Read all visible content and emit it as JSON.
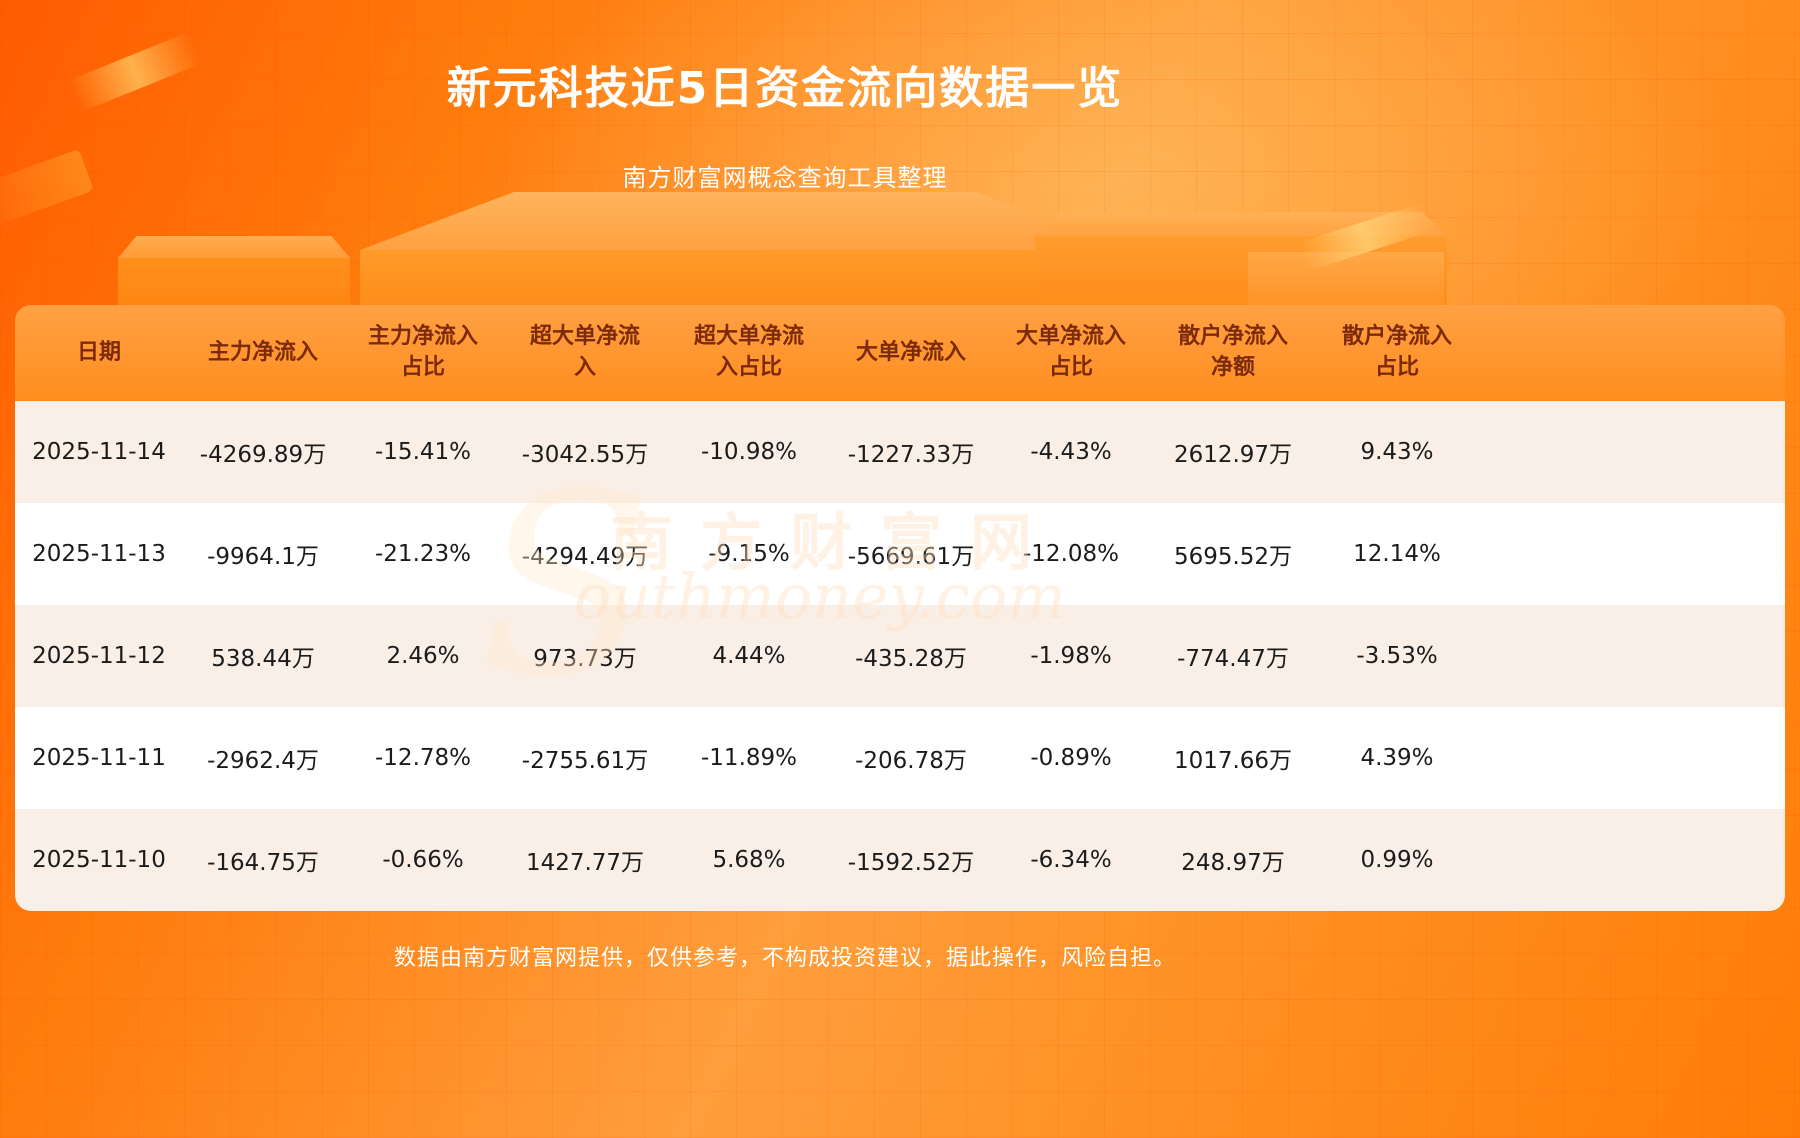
{
  "page": {
    "title": "新元科技近5日资金流向数据一览",
    "subtitle": "南方财富网概念查询工具整理",
    "watermark_s": "S",
    "watermark_cn": "南方财富网",
    "watermark_en": "outhmoney.com",
    "disclaimer": "数据由南方财富网提供，仅供参考，不构成投资建议，据此操作，风险自担。"
  },
  "colors": {
    "background_orange": "#ff7b0c",
    "header_row_bg": "#ff8d1e",
    "header_text": "#7c2a0c",
    "row_odd_bg": "#f9efe6",
    "row_even_bg": "#ffffff",
    "body_text": "#1b1b1b",
    "title_text": "#ffffff"
  },
  "chart_data": {
    "type": "table",
    "title": "新元科技近5日资金流向数据一览",
    "columns": [
      "日期",
      "主力净流入",
      "主力净流入占比",
      "超大单净流入",
      "超大单净流入占比",
      "大单净流入",
      "大单净流入占比",
      "散户净流入净额",
      "散户净流入占比"
    ],
    "rows": [
      [
        "2025-11-14",
        "-4269.89万",
        "-15.41%",
        "-3042.55万",
        "-10.98%",
        "-1227.33万",
        "-4.43%",
        "2612.97万",
        "9.43%"
      ],
      [
        "2025-11-13",
        "-9964.1万",
        "-21.23%",
        "-4294.49万",
        "-9.15%",
        "-5669.61万",
        "-12.08%",
        "5695.52万",
        "12.14%"
      ],
      [
        "2025-11-12",
        "538.44万",
        "2.46%",
        "973.73万",
        "4.44%",
        "-435.28万",
        "-1.98%",
        "-774.47万",
        "-3.53%"
      ],
      [
        "2025-11-11",
        "-2962.4万",
        "-12.78%",
        "-2755.61万",
        "-11.89%",
        "-206.78万",
        "-0.89%",
        "1017.66万",
        "4.39%"
      ],
      [
        "2025-11-10",
        "-164.75万",
        "-0.66%",
        "1427.77万",
        "5.68%",
        "-1592.52万",
        "-6.34%",
        "248.97万",
        "0.99%"
      ]
    ]
  }
}
